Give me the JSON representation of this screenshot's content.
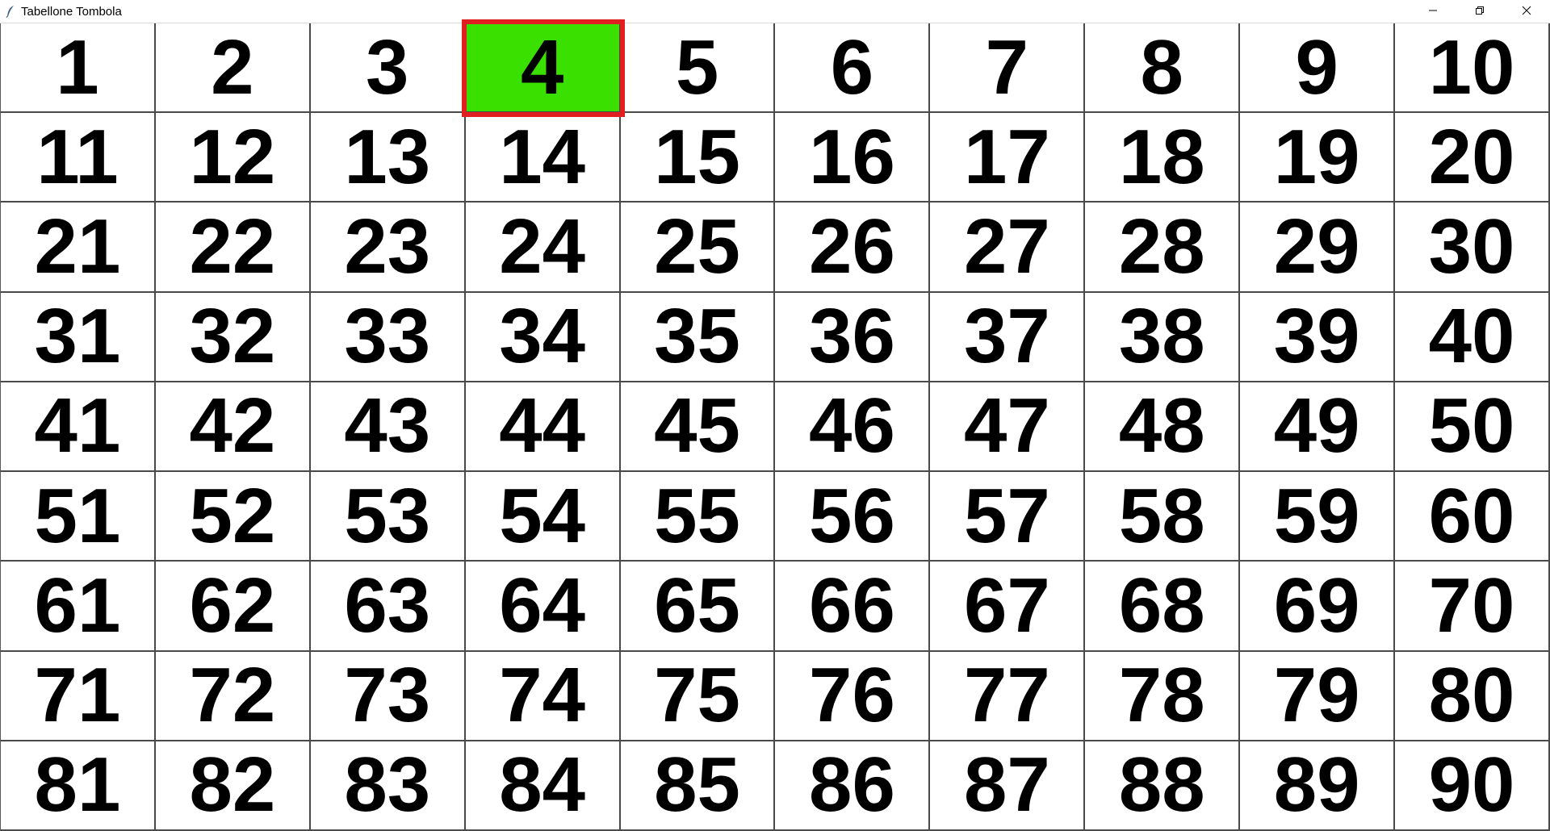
{
  "window": {
    "title": "Tabellone Tombola",
    "controls": {
      "minimize_icon": "minimize-icon",
      "maximize_icon": "restore-icon",
      "close_icon": "close-icon"
    }
  },
  "board": {
    "columns": 10,
    "rows": 9,
    "numbers": [
      "1",
      "2",
      "3",
      "4",
      "5",
      "6",
      "7",
      "8",
      "9",
      "10",
      "11",
      "12",
      "13",
      "14",
      "15",
      "16",
      "17",
      "18",
      "19",
      "20",
      "21",
      "22",
      "23",
      "24",
      "25",
      "26",
      "27",
      "28",
      "29",
      "30",
      "31",
      "32",
      "33",
      "34",
      "35",
      "36",
      "37",
      "38",
      "39",
      "40",
      "41",
      "42",
      "43",
      "44",
      "45",
      "46",
      "47",
      "48",
      "49",
      "50",
      "51",
      "52",
      "53",
      "54",
      "55",
      "56",
      "57",
      "58",
      "59",
      "60",
      "61",
      "62",
      "63",
      "64",
      "65",
      "66",
      "67",
      "68",
      "69",
      "70",
      "71",
      "72",
      "73",
      "74",
      "75",
      "76",
      "77",
      "78",
      "79",
      "80",
      "81",
      "82",
      "83",
      "84",
      "85",
      "86",
      "87",
      "88",
      "89",
      "90"
    ],
    "drawn_numbers": [
      "4"
    ],
    "highlighted_number": "4",
    "colors": {
      "drawn_background": "#3ae000",
      "highlight_border": "#e02020",
      "cell_background": "#ffffff",
      "grid_line": "#4a4a4a",
      "number_text": "#000000"
    }
  }
}
